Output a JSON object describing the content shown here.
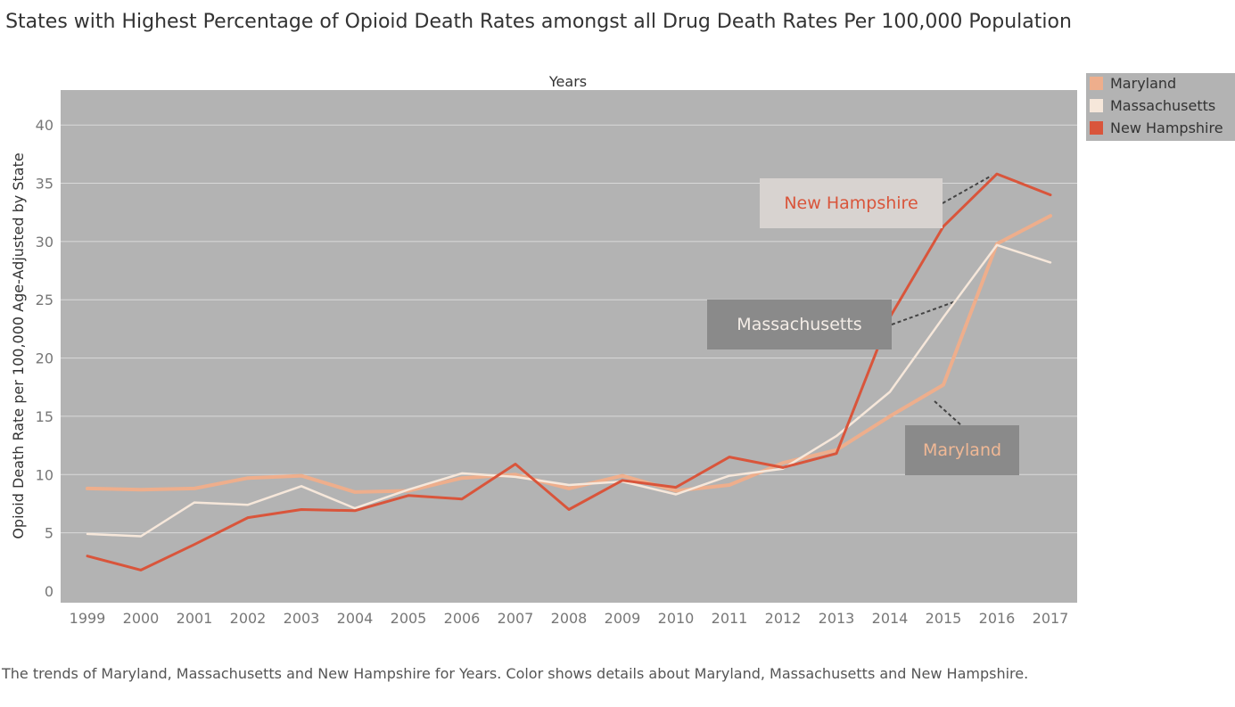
{
  "chart_data": {
    "type": "line",
    "title": "States with Highest Percentage of Opioid Death Rates amongst all Drug Death Rates Per 100,000 Population",
    "xlabel": "Years",
    "ylabel": "Opioid Death Rate per 100,000 Age-Adjusted by State",
    "x": [
      "1999",
      "2000",
      "2001",
      "2002",
      "2003",
      "2004",
      "2005",
      "2006",
      "2007",
      "2008",
      "2009",
      "2010",
      "2011",
      "2012",
      "2013",
      "2014",
      "2015",
      "2016",
      "2017"
    ],
    "yticks": [
      0,
      5,
      10,
      15,
      20,
      25,
      30,
      35,
      40
    ],
    "ylim": [
      -1,
      43
    ],
    "grid": true,
    "legend_position": "right",
    "series": [
      {
        "name": "Maryland",
        "color": "#eeae8c",
        "values": [
          8.8,
          8.7,
          8.8,
          9.7,
          9.9,
          8.5,
          8.6,
          9.7,
          10.0,
          8.8,
          9.9,
          8.6,
          9.1,
          11.0,
          12.1,
          15.0,
          17.7,
          29.8,
          32.2
        ]
      },
      {
        "name": "Massachusetts",
        "color": "#f6e7da",
        "values": [
          4.9,
          4.7,
          7.6,
          7.4,
          9.0,
          7.1,
          8.7,
          10.1,
          9.8,
          9.1,
          9.4,
          8.3,
          9.9,
          10.5,
          13.3,
          17.1,
          23.5,
          29.7,
          28.2
        ]
      },
      {
        "name": "New Hampshire",
        "color": "#d9553b",
        "values": [
          3.0,
          1.8,
          4.0,
          6.3,
          7.0,
          6.9,
          8.2,
          7.9,
          10.9,
          7.0,
          9.5,
          8.9,
          11.5,
          10.6,
          11.8,
          23.5,
          31.3,
          35.8,
          34.0
        ]
      }
    ],
    "annotations": [
      {
        "text": "New Hampshire",
        "color": "#d9553b",
        "background": "#d8d3d0"
      },
      {
        "text": "Massachusetts",
        "color": "#f3ece6",
        "background": "#8a8a8a"
      },
      {
        "text": "Maryland",
        "color": "#f0b895",
        "background": "#8a8a8a"
      }
    ],
    "caption": "The trends of Maryland, Massachusetts and New Hampshire for Years.  Color shows details about Maryland, Massachusetts and New Hampshire."
  },
  "colors": {
    "plot_background": "#b3b3b3",
    "gridline": "#d9d9d9",
    "tick_label": "#777777"
  }
}
